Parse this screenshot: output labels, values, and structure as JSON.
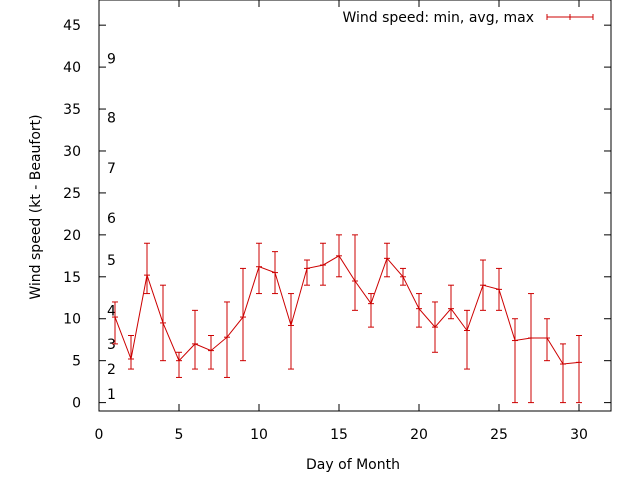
{
  "chart_data": {
    "type": "line",
    "title": "",
    "xlabel": "Day of Month",
    "ylabel": "Wind speed (kt - Beaufort)",
    "xlim": [
      0,
      32
    ],
    "ylim": [
      -1,
      48
    ],
    "xticks": [
      0,
      5,
      10,
      15,
      20,
      25,
      30
    ],
    "yticks": [
      0,
      5,
      10,
      15,
      20,
      25,
      30,
      35,
      40,
      45
    ],
    "grid": false,
    "legend": {
      "position": "top-right",
      "label": "Wind speed: min, avg, max"
    },
    "beaufort_labels": [
      {
        "label": "1",
        "y": 1
      },
      {
        "label": "2",
        "y": 4
      },
      {
        "label": "3",
        "y": 7
      },
      {
        "label": "4",
        "y": 11
      },
      {
        "label": "5",
        "y": 17
      },
      {
        "label": "6",
        "y": 22
      },
      {
        "label": "7",
        "y": 28
      },
      {
        "label": "8",
        "y": 34
      },
      {
        "label": "9",
        "y": 41
      }
    ],
    "series": [
      {
        "name": "Wind speed: min, avg, max",
        "color": "#cc0000",
        "points": [
          {
            "x": 1,
            "avg": 10.2,
            "min": 7,
            "max": 12
          },
          {
            "x": 2,
            "avg": 5.2,
            "min": 4,
            "max": 8
          },
          {
            "x": 3,
            "avg": 15.2,
            "min": 13,
            "max": 19
          },
          {
            "x": 4,
            "avg": 9.5,
            "min": 5,
            "max": 14
          },
          {
            "x": 5,
            "avg": 5.0,
            "min": 3,
            "max": 6
          },
          {
            "x": 6,
            "avg": 7.0,
            "min": 4,
            "max": 11
          },
          {
            "x": 7,
            "avg": 6.2,
            "min": 4,
            "max": 8
          },
          {
            "x": 8,
            "avg": 7.8,
            "min": 3,
            "max": 12
          },
          {
            "x": 9,
            "avg": 10.2,
            "min": 5,
            "max": 16
          },
          {
            "x": 10,
            "avg": 16.2,
            "min": 13,
            "max": 19
          },
          {
            "x": 11,
            "avg": 15.5,
            "min": 13,
            "max": 18
          },
          {
            "x": 12,
            "avg": 9.2,
            "min": 4,
            "max": 13
          },
          {
            "x": 13,
            "avg": 16.0,
            "min": 14,
            "max": 17
          },
          {
            "x": 14,
            "avg": 16.4,
            "min": 14,
            "max": 19
          },
          {
            "x": 15,
            "avg": 17.5,
            "min": 15,
            "max": 20
          },
          {
            "x": 16,
            "avg": 14.5,
            "min": 11,
            "max": 20
          },
          {
            "x": 17,
            "avg": 11.8,
            "min": 9,
            "max": 13
          },
          {
            "x": 18,
            "avg": 17.2,
            "min": 15,
            "max": 19
          },
          {
            "x": 19,
            "avg": 15.0,
            "min": 14,
            "max": 16
          },
          {
            "x": 20,
            "avg": 11.2,
            "min": 9,
            "max": 13
          },
          {
            "x": 21,
            "avg": 9.0,
            "min": 6,
            "max": 12
          },
          {
            "x": 22,
            "avg": 11.2,
            "min": 10,
            "max": 14
          },
          {
            "x": 23,
            "avg": 8.6,
            "min": 4,
            "max": 11
          },
          {
            "x": 24,
            "avg": 14.0,
            "min": 11,
            "max": 17
          },
          {
            "x": 25,
            "avg": 13.5,
            "min": 11,
            "max": 16
          },
          {
            "x": 26,
            "avg": 7.4,
            "min": 0,
            "max": 10
          },
          {
            "x": 27,
            "avg": 7.7,
            "min": 0,
            "max": 13
          },
          {
            "x": 28,
            "avg": 7.7,
            "min": 5,
            "max": 10
          },
          {
            "x": 29,
            "avg": 4.6,
            "min": 0,
            "max": 7
          },
          {
            "x": 30,
            "avg": 4.8,
            "min": 0,
            "max": 8
          }
        ]
      }
    ]
  }
}
